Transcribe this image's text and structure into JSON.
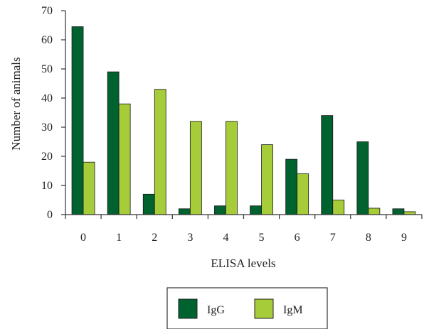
{
  "chart_data": {
    "type": "bar",
    "categories": [
      "0",
      "1",
      "2",
      "3",
      "4",
      "5",
      "6",
      "7",
      "8",
      "9"
    ],
    "series": [
      {
        "name": "IgG",
        "color": "#00622f",
        "values": [
          64.5,
          49,
          7,
          2,
          3,
          3,
          19,
          34,
          25,
          2
        ]
      },
      {
        "name": "IgM",
        "color": "#a6cc3a",
        "values": [
          18,
          38,
          43,
          32,
          32,
          24,
          14,
          5,
          2.2,
          1
        ]
      }
    ],
    "title": "",
    "xlabel": "ELISA levels",
    "ylabel": "Number of animals",
    "ylim": [
      0,
      70
    ],
    "yticks": [
      0,
      10,
      20,
      30,
      40,
      50,
      60,
      70
    ],
    "grid": false,
    "legend": {
      "placement": "bottom-center"
    }
  }
}
